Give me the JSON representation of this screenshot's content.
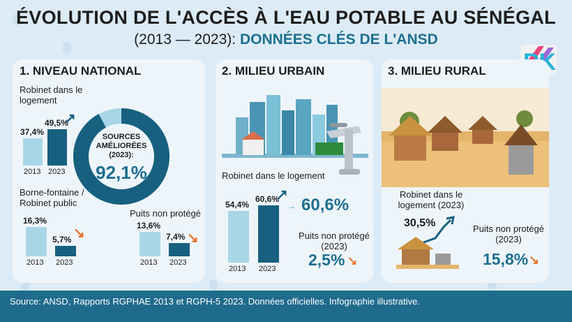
{
  "title": "ÉVOLUTION DE L'ACCÈS À L'EAU POTABLE AU SÉNÉGAL",
  "subtitle_years": "(2013 — 2023):",
  "subtitle_source": "DONNÉES CLÉS DE L'ANSD",
  "logo_text": "PK",
  "colors": {
    "dark_blue": "#17607f",
    "light_blue": "#a8d6e6",
    "orange": "#e8742a",
    "accent": "#1e6f8f"
  },
  "national": {
    "heading": "1. NIVEAU NATIONAL",
    "robinet_label": "Robinet dans le logement",
    "borne_label": "Borne-fontaine / Robinet public",
    "puits_label": "Puits non protégé",
    "donut_line1": "SOURCES",
    "donut_line2": "AMÉLIORÉES",
    "donut_line3": "(2023):",
    "donut_value": "92,1%",
    "donut_pct": 92.1
  },
  "urbain": {
    "heading": "2. MILIEU URBAIN",
    "robinet_label": "Robinet dans le logement",
    "robinet_big": "60,6%",
    "puits_label": "Puits non protégé (2023)",
    "puits_value": "2,5%"
  },
  "rural": {
    "heading": "3. MILIEU RURAL",
    "robinet_label": "Robinet dans le logement (2023)",
    "robinet_value": "30,5%",
    "puits_label": "Puits non protégé (2023)",
    "puits_value": "15,8%"
  },
  "footer": "Source: ANSD, Rapports RGPHAE 2013 et RGPH-5 2023. Données officielles. Infographie illustrative.",
  "chart_data": [
    {
      "type": "bar",
      "title": "Robinet dans le logement",
      "categories": [
        "2013",
        "2023"
      ],
      "values": [
        37.4,
        49.5
      ],
      "labels": [
        "37,4%",
        "49,5%"
      ]
    },
    {
      "type": "bar",
      "title": "Borne-fontaine / Robinet public",
      "categories": [
        "2013",
        "2023"
      ],
      "values": [
        16.3,
        5.7
      ],
      "labels": [
        "16,3%",
        "5,7%"
      ]
    },
    {
      "type": "bar",
      "title": "Puits non protégé",
      "categories": [
        "2013",
        "2023"
      ],
      "values": [
        13.6,
        7.4
      ],
      "labels": [
        "13,6%",
        "7,4%"
      ]
    },
    {
      "type": "bar",
      "title": "Robinet dans le logement",
      "categories": [
        "2013",
        "2023"
      ],
      "values": [
        54.4,
        60.6
      ],
      "labels": [
        "54,4%",
        "60,6%"
      ]
    }
  ]
}
